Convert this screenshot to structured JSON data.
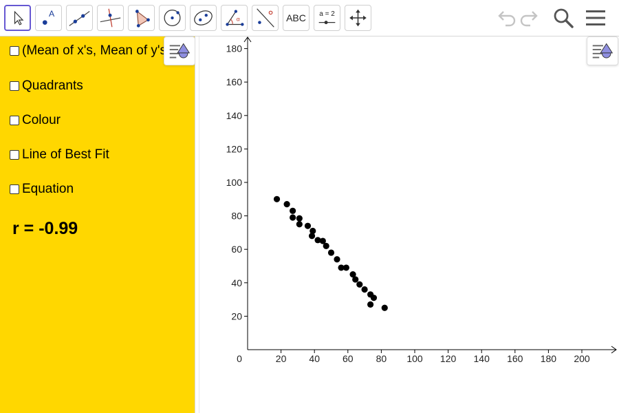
{
  "toolbar": {
    "tools": [
      {
        "name": "move-tool",
        "icon": "arrow-pointer-icon",
        "active": true
      },
      {
        "name": "point-tool",
        "icon": "point-icon",
        "label": "A"
      },
      {
        "name": "line-tool",
        "icon": "line-icon"
      },
      {
        "name": "perpendicular-line-tool",
        "icon": "perpendicular-line-icon"
      },
      {
        "name": "polygon-tool",
        "icon": "polygon-icon"
      },
      {
        "name": "circle-tool",
        "icon": "circle-icon"
      },
      {
        "name": "ellipse-tool",
        "icon": "ellipse-icon"
      },
      {
        "name": "angle-tool",
        "icon": "angle-icon",
        "label": "α"
      },
      {
        "name": "reflect-tool",
        "icon": "reflect-icon"
      },
      {
        "name": "text-tool",
        "icon": "text-icon",
        "label": "ABC"
      },
      {
        "name": "slider-tool",
        "icon": "slider-icon",
        "label": "a = 2"
      },
      {
        "name": "move-graphics-tool",
        "icon": "move-graphics-icon"
      }
    ],
    "undo": "undo-icon",
    "redo": "redo-icon",
    "search": "search-icon",
    "menu": "menu-icon"
  },
  "algebra": {
    "checkboxes": [
      {
        "label": "(Mean of x's, Mean of y's)",
        "checked": false
      },
      {
        "label": "Quadrants",
        "checked": false
      },
      {
        "label": "Colour",
        "checked": false
      },
      {
        "label": "Line of Best Fit",
        "checked": false
      },
      {
        "label": "Equation",
        "checked": false
      }
    ],
    "r_text": "r = -0.99",
    "background_color": "#ffd700"
  },
  "chart_data": {
    "type": "scatter",
    "title": "",
    "xlabel": "",
    "ylabel": "",
    "xlim": [
      0,
      220
    ],
    "ylim": [
      0,
      185
    ],
    "x_ticks": [
      "0",
      "20",
      "40",
      "60",
      "80",
      "100",
      "120",
      "140",
      "160",
      "180",
      "200"
    ],
    "y_ticks": [
      "20",
      "40",
      "60",
      "80",
      "100",
      "120",
      "140",
      "160",
      "180"
    ],
    "point_color": "#000000",
    "points": [
      [
        17.5,
        90
      ],
      [
        23.5,
        87
      ],
      [
        27,
        83
      ],
      [
        27,
        79
      ],
      [
        31,
        78.5
      ],
      [
        31,
        75
      ],
      [
        36,
        74
      ],
      [
        39,
        71
      ],
      [
        38.5,
        68
      ],
      [
        42,
        65.5
      ],
      [
        45,
        65
      ],
      [
        47,
        62
      ],
      [
        50,
        58
      ],
      [
        53.5,
        54
      ],
      [
        56,
        49
      ],
      [
        59,
        49
      ],
      [
        63,
        45
      ],
      [
        64.5,
        42
      ],
      [
        67,
        39
      ],
      [
        70,
        36
      ],
      [
        73.5,
        33
      ],
      [
        75.5,
        31
      ],
      [
        73.5,
        27
      ],
      [
        82,
        25
      ]
    ]
  }
}
